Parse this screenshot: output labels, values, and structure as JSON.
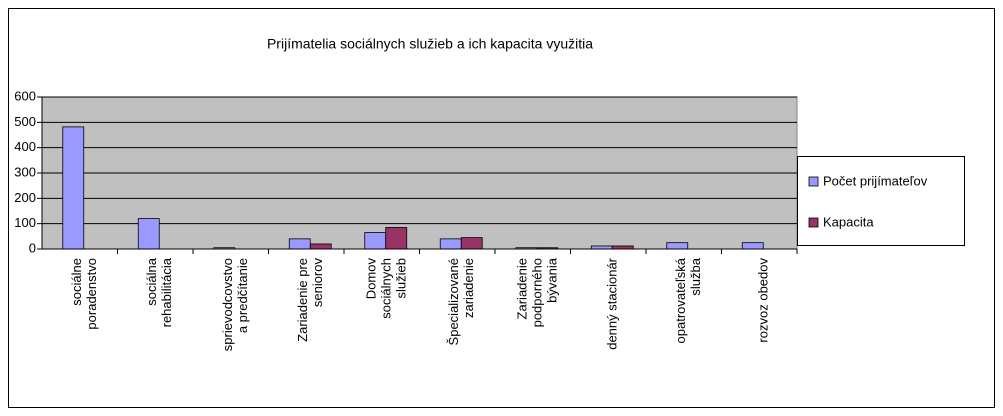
{
  "chart_data": {
    "type": "bar",
    "title": "Prijímatelia sociálnych služieb a ich kapacita využitia",
    "categories": [
      "sociálne poradenstvo",
      "sociálna rehabilitácia",
      "sprievodcovstvo a predčítanie",
      "Zariadenie pre seniorov",
      "Domov sociálnych služieb",
      "Špecializované zariadenie",
      "Zariadenie podporného bývania",
      "denný stacionár",
      "opatrovateľská služba",
      "rozvoz obedov"
    ],
    "series": [
      {
        "name": "Počet prijímateľov",
        "color": "#9999ff",
        "values": [
          482,
          120,
          5,
          40,
          65,
          40,
          5,
          12,
          25,
          25
        ]
      },
      {
        "name": "Kapacita",
        "color": "#993366",
        "values": [
          null,
          null,
          null,
          20,
          85,
          45,
          5,
          12,
          null,
          null
        ]
      }
    ],
    "ylim": [
      0,
      600
    ],
    "yticks": [
      0,
      100,
      200,
      300,
      400,
      500,
      600
    ],
    "grid": true,
    "legend": "right"
  }
}
